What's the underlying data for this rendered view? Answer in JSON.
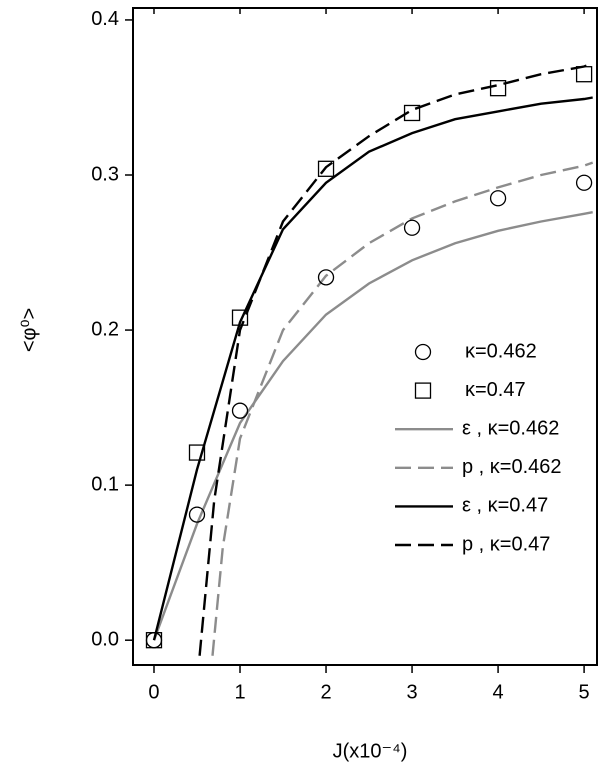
{
  "chart_data": {
    "type": "scatter-line",
    "xlabel": "J(x10⁻⁴)",
    "ylabel": "<φ⁰>",
    "xlim": [
      -0.244,
      5.15
    ],
    "ylim": [
      -0.016,
      0.4077
    ],
    "xticks": [
      0,
      1,
      2,
      3,
      4,
      5
    ],
    "yticks": [
      {
        "value": 0,
        "label": "0.0"
      },
      {
        "value": 0.1,
        "label": "0.1"
      },
      {
        "value": 0.2,
        "label": "0.2"
      },
      {
        "value": 0.3,
        "label": "0.3"
      },
      {
        "value": 0.4,
        "label": "0.4"
      }
    ],
    "legend": "right",
    "series": [
      {
        "name": "κ=0.462",
        "color": "#000000",
        "marker": "circle",
        "x": [
          0,
          0.5,
          1,
          2,
          3,
          4,
          5
        ],
        "values": [
          0,
          0.081,
          0.148,
          0.234,
          0.266,
          0.285,
          0.295
        ]
      },
      {
        "name": "κ=0.47",
        "color": "#000000",
        "marker": "square",
        "x": [
          0,
          0.5,
          1,
          2,
          3,
          4,
          5
        ],
        "values": [
          0,
          0.121,
          0.208,
          0.304,
          0.34,
          0.356,
          0.365
        ]
      },
      {
        "name": "ε , κ=0.462",
        "color": "#8c8c8c",
        "line": "solid",
        "x": [
          0,
          0.5,
          1,
          1.5,
          2,
          2.5,
          3,
          3.5,
          4,
          4.5,
          5,
          5.1
        ],
        "values": [
          0,
          0.075,
          0.14,
          0.18,
          0.21,
          0.23,
          0.245,
          0.256,
          0.264,
          0.27,
          0.275,
          0.276
        ]
      },
      {
        "name": "p , κ=0.462",
        "color": "#8c8c8c",
        "line": "dashed",
        "x": [
          0.68,
          0.8,
          1,
          1.5,
          2,
          2.5,
          3,
          3.5,
          4,
          4.5,
          5,
          5.1
        ],
        "values": [
          -0.01,
          0.06,
          0.13,
          0.2,
          0.235,
          0.256,
          0.272,
          0.283,
          0.292,
          0.3,
          0.306,
          0.308
        ]
      },
      {
        "name": "ε , κ=0.47",
        "color": "#000000",
        "line": "solid",
        "x": [
          0,
          0.5,
          1,
          1.5,
          2,
          2.5,
          3,
          3.5,
          4,
          4.5,
          5,
          5.1
        ],
        "values": [
          0,
          0.11,
          0.205,
          0.265,
          0.295,
          0.315,
          0.327,
          0.336,
          0.341,
          0.346,
          0.349,
          0.35
        ]
      },
      {
        "name": "p , κ=0.47",
        "color": "#000000",
        "line": "dashed",
        "x": [
          0.53,
          0.7,
          1,
          1.5,
          2,
          2.5,
          3,
          3.5,
          4,
          4.5,
          5,
          5.1
        ],
        "values": [
          -0.01,
          0.09,
          0.2,
          0.27,
          0.305,
          0.325,
          0.342,
          0.352,
          0.358,
          0.365,
          0.37,
          0.372
        ]
      }
    ]
  }
}
